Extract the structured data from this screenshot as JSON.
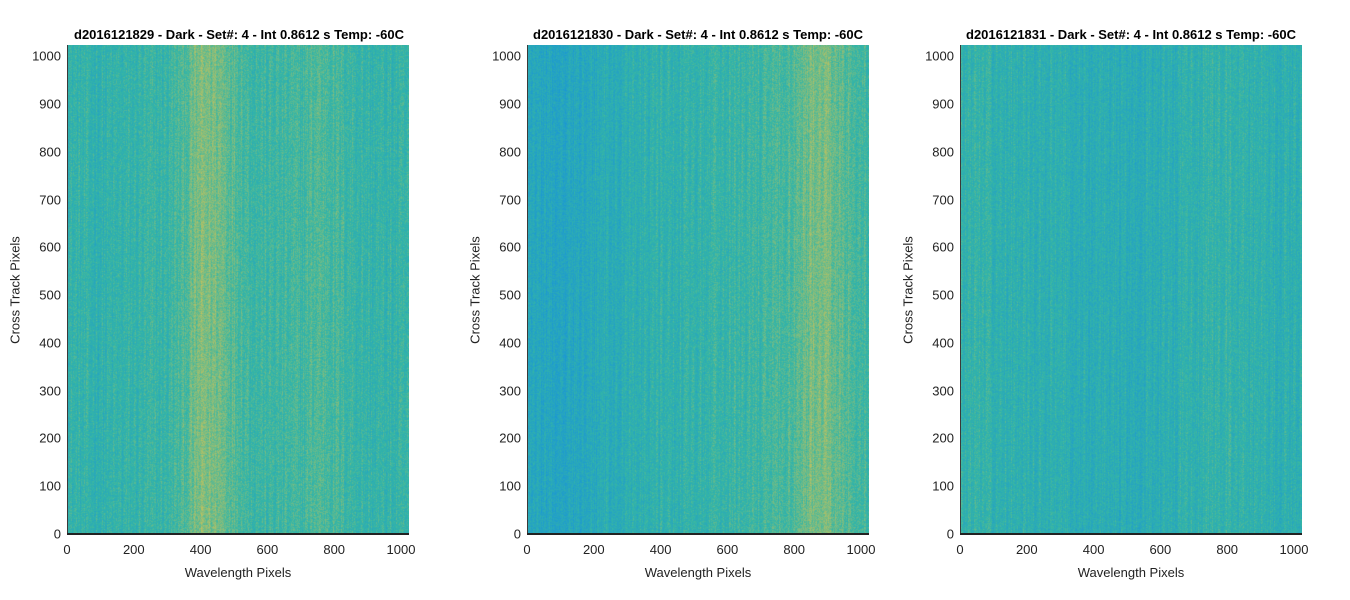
{
  "colors": {
    "low": "#1a96d6",
    "mid": "#35b6a5",
    "high": "#c9c25a",
    "axis": "#222222"
  },
  "chart_data": [
    {
      "type": "heatmap",
      "title": "d2016121829 - Dark - Set#: 4 - Int 0.8612 s Temp: -60C",
      "xlabel": "Wavelength Pixels",
      "ylabel": "Cross Track Pixels",
      "xlim": [
        0,
        1024
      ],
      "ylim": [
        0,
        1024
      ],
      "xticks": [
        "0",
        "200",
        "400",
        "600",
        "800",
        "1000"
      ],
      "yticks": [
        "0",
        "100",
        "200",
        "300",
        "400",
        "500",
        "600",
        "700",
        "800",
        "900",
        "1000"
      ],
      "band_profile": {
        "x": [
          0,
          100,
          200,
          300,
          350,
          400,
          450,
          500,
          550,
          600,
          700,
          750,
          800,
          900,
          1024
        ],
        "intensity": [
          0.45,
          0.42,
          0.45,
          0.48,
          0.58,
          0.75,
          0.72,
          0.62,
          0.52,
          0.5,
          0.52,
          0.6,
          0.55,
          0.45,
          0.45
        ]
      }
    },
    {
      "type": "heatmap",
      "title": "d2016121830 - Dark - Set#: 4 - Int 0.8612 s Temp: -60C",
      "xlabel": "Wavelength Pixels",
      "ylabel": "Cross Track Pixels",
      "xlim": [
        0,
        1024
      ],
      "ylim": [
        0,
        1024
      ],
      "xticks": [
        "0",
        "200",
        "400",
        "600",
        "800",
        "1000"
      ],
      "yticks": [
        "0",
        "100",
        "200",
        "300",
        "400",
        "500",
        "600",
        "700",
        "800",
        "900",
        "1000"
      ],
      "band_profile": {
        "x": [
          0,
          100,
          200,
          300,
          400,
          500,
          600,
          700,
          800,
          850,
          900,
          950,
          1024
        ],
        "intensity": [
          0.25,
          0.22,
          0.3,
          0.38,
          0.42,
          0.45,
          0.48,
          0.5,
          0.6,
          0.72,
          0.75,
          0.62,
          0.5
        ]
      }
    },
    {
      "type": "heatmap",
      "title": "d2016121831 - Dark - Set#: 4 - Int 0.8612 s Temp: -60C",
      "xlabel": "Wavelength Pixels",
      "ylabel": "Cross Track Pixels",
      "xlim": [
        0,
        1024
      ],
      "ylim": [
        0,
        1024
      ],
      "xticks": [
        "0",
        "200",
        "400",
        "600",
        "800",
        "1000"
      ],
      "yticks": [
        "0",
        "100",
        "200",
        "300",
        "400",
        "500",
        "600",
        "700",
        "800",
        "900",
        "1000"
      ],
      "band_profile": {
        "x": [
          0,
          100,
          200,
          300,
          400,
          500,
          600,
          700,
          800,
          900,
          1024
        ],
        "intensity": [
          0.45,
          0.42,
          0.4,
          0.38,
          0.35,
          0.33,
          0.36,
          0.42,
          0.45,
          0.4,
          0.4
        ]
      }
    }
  ]
}
